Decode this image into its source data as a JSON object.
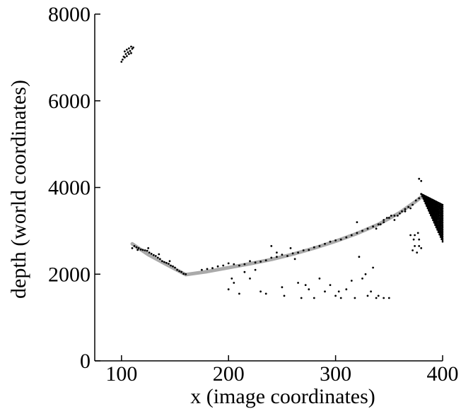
{
  "chart_data": {
    "type": "scatter",
    "title": "",
    "xlabel": "x (image coordinates)",
    "ylabel": "depth (world coordinates)",
    "xlim": [
      75,
      400
    ],
    "ylim": [
      0,
      8000
    ],
    "xticks": [
      "100",
      "200",
      "300",
      "400"
    ],
    "yticks": [
      "0",
      "2000",
      "4000",
      "6000",
      "8000"
    ],
    "grid": false,
    "legend": "none",
    "colors": {
      "points": "#000000",
      "trend": "#aaaaaa"
    },
    "series": [
      {
        "type": "line",
        "values": [
          [
            110,
            2700
          ],
          [
            125,
            2450
          ],
          [
            140,
            2250
          ],
          [
            150,
            2120
          ],
          [
            160,
            1990
          ],
          [
            180,
            2060
          ],
          [
            200,
            2150
          ],
          [
            220,
            2240
          ],
          [
            240,
            2340
          ],
          [
            260,
            2460
          ],
          [
            280,
            2600
          ],
          [
            300,
            2760
          ],
          [
            320,
            2940
          ],
          [
            340,
            3150
          ],
          [
            360,
            3420
          ],
          [
            375,
            3680
          ],
          [
            380,
            3780
          ]
        ]
      },
      {
        "type": "scatter",
        "values": [
          [
            101,
            6950
          ],
          [
            103,
            7000
          ],
          [
            105,
            7030
          ],
          [
            107,
            7080
          ],
          [
            109,
            7100
          ],
          [
            102,
            7020
          ],
          [
            104,
            7080
          ],
          [
            106,
            7120
          ],
          [
            108,
            7150
          ],
          [
            110,
            7200
          ],
          [
            103,
            7140
          ],
          [
            105,
            7180
          ],
          [
            107,
            7210
          ],
          [
            109,
            7250
          ],
          [
            111,
            7230
          ],
          [
            100,
            6900
          ],
          [
            110,
            2600
          ],
          [
            112,
            2650
          ],
          [
            114,
            2620
          ],
          [
            116,
            2600
          ],
          [
            118,
            2570
          ],
          [
            120,
            2560
          ],
          [
            122,
            2550
          ],
          [
            124,
            2540
          ],
          [
            126,
            2500
          ],
          [
            128,
            2470
          ],
          [
            130,
            2440
          ],
          [
            132,
            2420
          ],
          [
            134,
            2380
          ],
          [
            136,
            2350
          ],
          [
            138,
            2300
          ],
          [
            140,
            2280
          ],
          [
            142,
            2260
          ],
          [
            144,
            2240
          ],
          [
            146,
            2200
          ],
          [
            148,
            2180
          ],
          [
            150,
            2150
          ],
          [
            152,
            2100
          ],
          [
            154,
            2070
          ],
          [
            156,
            2050
          ],
          [
            158,
            2010
          ],
          [
            115,
            2560
          ],
          [
            125,
            2600
          ],
          [
            145,
            2300
          ],
          [
            135,
            2460
          ],
          [
            160,
            2000
          ],
          [
            175,
            2100
          ],
          [
            180,
            2120
          ],
          [
            185,
            2140
          ],
          [
            190,
            2180
          ],
          [
            195,
            2200
          ],
          [
            200,
            2250
          ],
          [
            205,
            2230
          ],
          [
            210,
            2200
          ],
          [
            215,
            2230
          ],
          [
            220,
            2300
          ],
          [
            225,
            2270
          ],
          [
            230,
            2290
          ],
          [
            235,
            2320
          ],
          [
            240,
            2380
          ],
          [
            245,
            2400
          ],
          [
            250,
            2450
          ],
          [
            255,
            2420
          ],
          [
            260,
            2480
          ],
          [
            265,
            2500
          ],
          [
            270,
            2550
          ],
          [
            275,
            2560
          ],
          [
            280,
            2620
          ],
          [
            285,
            2650
          ],
          [
            290,
            2700
          ],
          [
            295,
            2750
          ],
          [
            300,
            2780
          ],
          [
            305,
            2800
          ],
          [
            310,
            2850
          ],
          [
            315,
            2900
          ],
          [
            320,
            2950
          ],
          [
            325,
            3000
          ],
          [
            330,
            3050
          ],
          [
            335,
            3100
          ],
          [
            340,
            3150
          ],
          [
            345,
            3200
          ],
          [
            350,
            3300
          ],
          [
            355,
            3350
          ],
          [
            360,
            3400
          ],
          [
            365,
            3450
          ],
          [
            370,
            3520
          ],
          [
            200,
            1650
          ],
          [
            203,
            1900
          ],
          [
            205,
            1800
          ],
          [
            210,
            1550
          ],
          [
            215,
            2050
          ],
          [
            220,
            1900
          ],
          [
            225,
            2100
          ],
          [
            230,
            1600
          ],
          [
            235,
            1550
          ],
          [
            240,
            2650
          ],
          [
            245,
            2500
          ],
          [
            250,
            1700
          ],
          [
            252,
            1500
          ],
          [
            258,
            2600
          ],
          [
            262,
            2350
          ],
          [
            265,
            1800
          ],
          [
            268,
            1450
          ],
          [
            272,
            1750
          ],
          [
            275,
            1650
          ],
          [
            280,
            1450
          ],
          [
            285,
            1900
          ],
          [
            290,
            1600
          ],
          [
            295,
            1750
          ],
          [
            300,
            1500
          ],
          [
            303,
            1600
          ],
          [
            305,
            1450
          ],
          [
            310,
            1650
          ],
          [
            315,
            1850
          ],
          [
            318,
            1450
          ],
          [
            320,
            3200
          ],
          [
            322,
            2400
          ],
          [
            325,
            1900
          ],
          [
            328,
            2000
          ],
          [
            330,
            1500
          ],
          [
            333,
            1600
          ],
          [
            335,
            2150
          ],
          [
            338,
            1450
          ],
          [
            340,
            1500
          ],
          [
            345,
            1450
          ],
          [
            350,
            1450
          ],
          [
            338,
            3050
          ],
          [
            342,
            3150
          ],
          [
            345,
            3250
          ],
          [
            348,
            3300
          ],
          [
            352,
            3350
          ],
          [
            355,
            3250
          ],
          [
            358,
            3350
          ],
          [
            362,
            3450
          ],
          [
            365,
            3500
          ],
          [
            368,
            3550
          ],
          [
            372,
            3600
          ],
          [
            375,
            3700
          ],
          [
            378,
            3750
          ],
          [
            378,
            4200
          ],
          [
            380,
            4150
          ],
          [
            378,
            2800
          ],
          [
            374,
            2650
          ],
          [
            372,
            2550
          ],
          [
            376,
            2500
          ],
          [
            370,
            2900
          ],
          [
            374,
            2900
          ],
          [
            378,
            2650
          ],
          [
            380,
            2600
          ],
          [
            373,
            2800
          ],
          [
            377,
            2950
          ]
        ]
      }
    ],
    "fan_cluster_x": [
      380,
      400
    ],
    "fan_cluster_top": 3850,
    "fan_cluster_bottom_at_400": 2750
  }
}
